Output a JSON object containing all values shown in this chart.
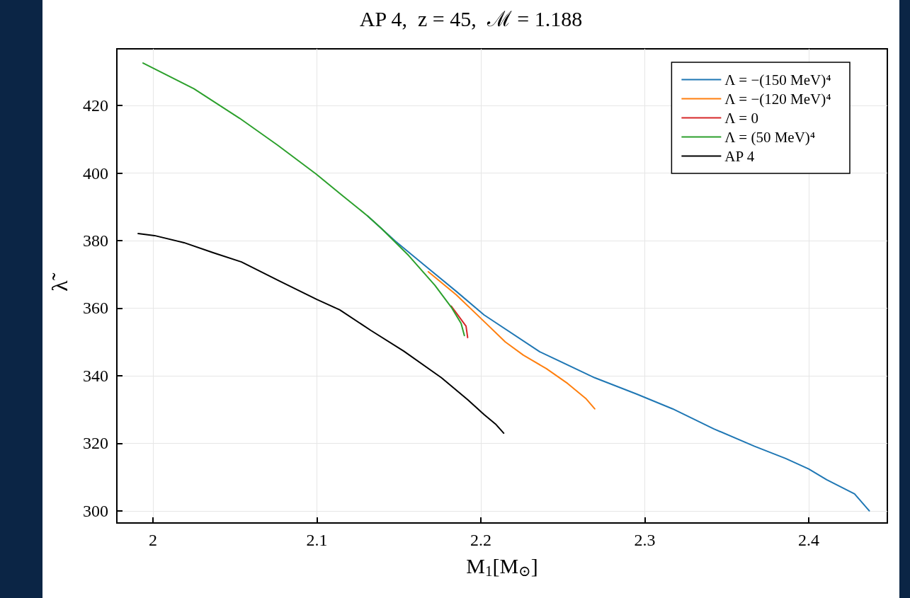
{
  "chart_data": {
    "type": "line",
    "title": "AP 4,  z = 45,  ℳ = 1.188",
    "xlabel": "M$_{1}$[M$_{⊙}$]",
    "ylabel": "λ̃",
    "xlim": [
      1.978,
      2.448
    ],
    "xticks": [
      2,
      2.1,
      2.2,
      2.3,
      2.4
    ],
    "ylim": [
      296.4,
      436.8
    ],
    "yticks": [
      300,
      320,
      340,
      360,
      380,
      400,
      420
    ],
    "grid": true,
    "legend": "top right",
    "marker": "none",
    "line_style": "solid",
    "series": [
      {
        "name": "Λ = −(150 MeV)⁴",
        "color": "#1f77b4",
        "x": [
          2.131,
          2.148,
          2.168,
          2.185,
          2.202,
          2.236,
          2.2695,
          2.295,
          2.317,
          2.342,
          2.367,
          2.386,
          2.4,
          2.411,
          2.428,
          2.437
        ],
        "values": [
          387.3,
          379.8,
          371.8,
          365.0,
          358.0,
          347.1,
          339.4,
          334.6,
          330.2,
          324.3,
          319.1,
          315.5,
          312.4,
          309.2,
          305.0,
          300.0
        ]
      },
      {
        "name": "Λ = −(120 MeV)⁴",
        "color": "#ff7f0e",
        "x": [
          2.168,
          2.185,
          2.1996,
          2.215,
          2.226,
          2.24,
          2.253,
          2.264,
          2.2695
        ],
        "values": [
          370.8,
          364.0,
          357.2,
          350.0,
          346.1,
          342.1,
          337.7,
          333.3,
          330.2
        ]
      },
      {
        "name": "Λ = 0",
        "color": "#d62728",
        "x": [
          2.182,
          2.186,
          2.191,
          2.192
        ],
        "values": [
          360.6,
          358.0,
          354.7,
          351.3
        ]
      },
      {
        "name": "Λ = (50 MeV)⁴",
        "color": "#2ca02c",
        "x": [
          1.994,
          2.025,
          2.053,
          2.076,
          2.0996,
          2.115,
          2.131,
          2.139,
          2.156,
          2.172,
          2.182,
          2.188,
          2.19
        ],
        "values": [
          432.6,
          425.0,
          416.2,
          408.3,
          399.7,
          393.6,
          387.3,
          383.8,
          375.6,
          366.8,
          360.3,
          355.5,
          351.9
        ]
      },
      {
        "name": "AP 4",
        "color": "#000000",
        "x": [
          1.991,
          2.001,
          2.019,
          2.037,
          2.054,
          2.077,
          2.1,
          2.114,
          2.133,
          2.153,
          2.176,
          2.192,
          2.202,
          2.209,
          2.214
        ],
        "values": [
          382.1,
          381.5,
          379.4,
          376.4,
          373.7,
          368.1,
          362.6,
          359.5,
          353.4,
          347.3,
          339.4,
          332.9,
          328.5,
          325.7,
          323.0
        ]
      }
    ]
  }
}
